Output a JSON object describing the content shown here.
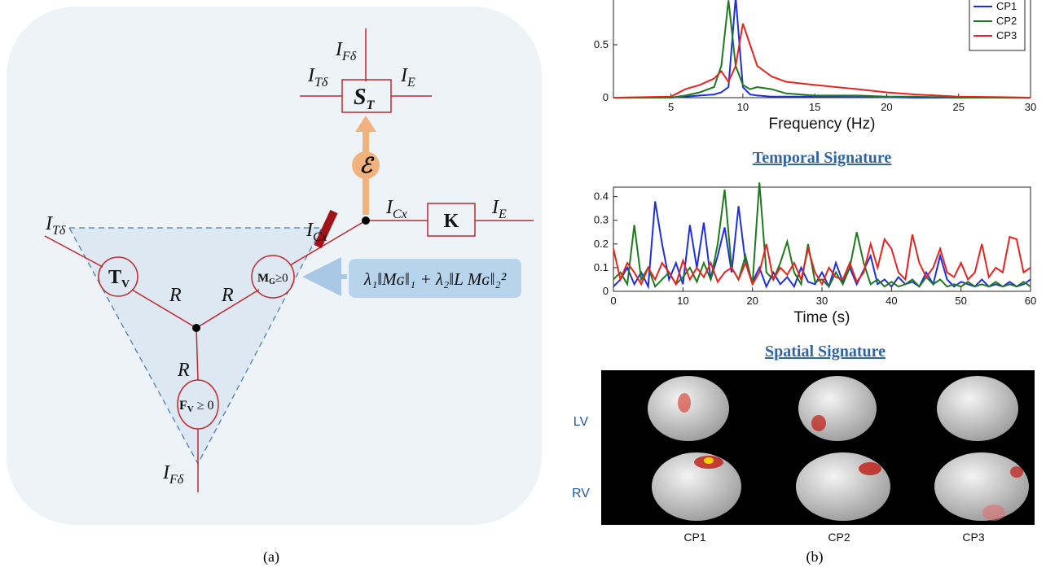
{
  "diagram": {
    "labels": [
      {
        "main": "I",
        "sub": "Fδ"
      },
      {
        "main": "I",
        "sub": "Tδ"
      },
      {
        "main": "I",
        "sub": "E"
      },
      {
        "main": "I",
        "sub": "Cx"
      },
      {
        "main": "I",
        "sub": "E"
      },
      {
        "main": "I",
        "sub": "Cx"
      },
      {
        "main": "I",
        "sub": "Tδ"
      },
      {
        "main": "I",
        "sub": "Fδ"
      }
    ],
    "nodes": [
      {
        "main": "S",
        "sub": "T"
      },
      {
        "main": "ℰ"
      },
      {
        "main": "K"
      },
      {
        "main": "T",
        "sub": "V"
      },
      {
        "main": "M",
        "sub": "G",
        "rest": "≥0"
      },
      {
        "main": "F",
        "sub": "V",
        "rest": " ≥ 0"
      }
    ],
    "edges": [
      "R",
      "R",
      "R"
    ],
    "formula": "λ₁‖Mɢ‖₁ + λ₂‖L Mɢ‖₂²"
  },
  "chart_data": [
    {
      "type": "line",
      "xlabel": "Frequency (Hz)",
      "x": [
        1,
        5,
        6,
        7,
        8,
        8.5,
        9,
        9.5,
        10,
        10.5,
        11,
        12,
        13,
        15,
        18,
        20,
        22,
        25,
        28,
        30
      ],
      "series": [
        {
          "name": "CP1",
          "color": "#1f2fe0",
          "values": [
            0,
            0,
            0.01,
            0.02,
            0.03,
            0.05,
            0.1,
            0.95,
            0.1,
            0.03,
            0.02,
            0.01,
            0.01,
            0.01,
            0.005,
            0.005,
            0,
            0,
            0,
            0
          ]
        },
        {
          "name": "CP2",
          "color": "#1d7a1d",
          "values": [
            0,
            0,
            0.02,
            0.05,
            0.1,
            0.3,
            0.92,
            0.3,
            0.12,
            0.08,
            0.1,
            0.08,
            0.04,
            0.02,
            0.02,
            0.01,
            0.01,
            0,
            0,
            0
          ]
        },
        {
          "name": "CP3",
          "color": "#e8231f",
          "values": [
            0,
            0.01,
            0.08,
            0.12,
            0.18,
            0.25,
            0.15,
            0.3,
            0.7,
            0.5,
            0.3,
            0.2,
            0.15,
            0.12,
            0.08,
            0.05,
            0.03,
            0.01,
            0.005,
            0
          ]
        }
      ],
      "xlim": [
        1,
        30
      ],
      "xticks": [
        5,
        10,
        15,
        20,
        25,
        30
      ],
      "ylim": [
        0,
        1
      ],
      "yticks": [
        0,
        0.5
      ],
      "legend": "upper right"
    },
    {
      "type": "line",
      "title": "Temporal Signature",
      "xlabel": "Time (s)",
      "x": [
        0,
        1,
        2,
        3,
        4,
        5,
        6,
        7,
        8,
        9,
        10,
        11,
        12,
        13,
        14,
        15,
        16,
        17,
        18,
        19,
        20,
        21,
        22,
        23,
        24,
        25,
        26,
        27,
        28,
        29,
        30,
        31,
        32,
        33,
        34,
        35,
        36,
        37,
        38,
        39,
        40,
        41,
        42,
        43,
        44,
        45,
        46,
        47,
        48,
        49,
        50,
        51,
        52,
        53,
        54,
        55,
        56,
        57,
        58,
        59,
        60
      ],
      "series": [
        {
          "color": "#1f2fe0",
          "values": [
            0.02,
            0.05,
            0.1,
            0.03,
            0.08,
            0.02,
            0.38,
            0.2,
            0.05,
            0.12,
            0.03,
            0.28,
            0.1,
            0.29,
            0.05,
            0.15,
            0.27,
            0.08,
            0.36,
            0.12,
            0.04,
            0.1,
            0.02,
            0.08,
            0.03,
            0.06,
            0.02,
            0.1,
            0.04,
            0.03,
            0.08,
            0.02,
            0.12,
            0.04,
            0.1,
            0.03,
            0.09,
            0.15,
            0.03,
            0.05,
            0.02,
            0.06,
            0.03,
            0.04,
            0.02,
            0.08,
            0.03,
            0.15,
            0.05,
            0.02,
            0.04,
            0.03,
            0.02,
            0.05,
            0.02,
            0.03,
            0.02,
            0.04,
            0.02,
            0.03,
            0.05
          ]
        },
        {
          "color": "#1d7a1d",
          "values": [
            0.05,
            0.08,
            0.03,
            0.28,
            0.05,
            0.1,
            0.02,
            0.05,
            0.08,
            0.03,
            0.06,
            0.1,
            0.04,
            0.12,
            0.05,
            0.2,
            0.43,
            0.1,
            0.05,
            0.15,
            0.03,
            0.46,
            0.08,
            0.05,
            0.12,
            0.21,
            0.08,
            0.03,
            0.2,
            0.04,
            0.05,
            0.02,
            0.08,
            0.03,
            0.1,
            0.25,
            0.12,
            0.03,
            0.05,
            0.02,
            0.04,
            0.02,
            0.03,
            0.05,
            0.02,
            0.06,
            0.03,
            0.05,
            0.02,
            0.03,
            0.02,
            0.04,
            0.02,
            0.03,
            0.02,
            0.04,
            0.02,
            0.03,
            0.02,
            0.04,
            0.02
          ]
        },
        {
          "color": "#e8231f",
          "values": [
            0.18,
            0.05,
            0.12,
            0.08,
            0.03,
            0.1,
            0.05,
            0.12,
            0.08,
            0.03,
            0.13,
            0.05,
            0.1,
            0.06,
            0.12,
            0.04,
            0.08,
            0.1,
            0.05,
            0.12,
            0.03,
            0.08,
            0.2,
            0.05,
            0.1,
            0.07,
            0.12,
            0.05,
            0.18,
            0.08,
            0.03,
            0.1,
            0.06,
            0.05,
            0.12,
            0.04,
            0.08,
            0.2,
            0.1,
            0.22,
            0.18,
            0.08,
            0.05,
            0.24,
            0.12,
            0.06,
            0.1,
            0.18,
            0.08,
            0.06,
            0.12,
            0.05,
            0.08,
            0.2,
            0.06,
            0.1,
            0.08,
            0.23,
            0.22,
            0.08,
            0.1
          ]
        }
      ],
      "xlim": [
        0,
        60
      ],
      "xticks": [
        0,
        10,
        20,
        30,
        40,
        50,
        60
      ],
      "ylim": [
        0,
        0.44
      ],
      "yticks": [
        0,
        0.1,
        0.2,
        0.3,
        0.4
      ]
    }
  ],
  "spatial": {
    "title": "Spatial Signature",
    "rows": [
      "LV",
      "RV"
    ],
    "columns": [
      "CP1",
      "CP2",
      "CP3"
    ]
  },
  "captions": [
    "(a)",
    "(b)"
  ]
}
